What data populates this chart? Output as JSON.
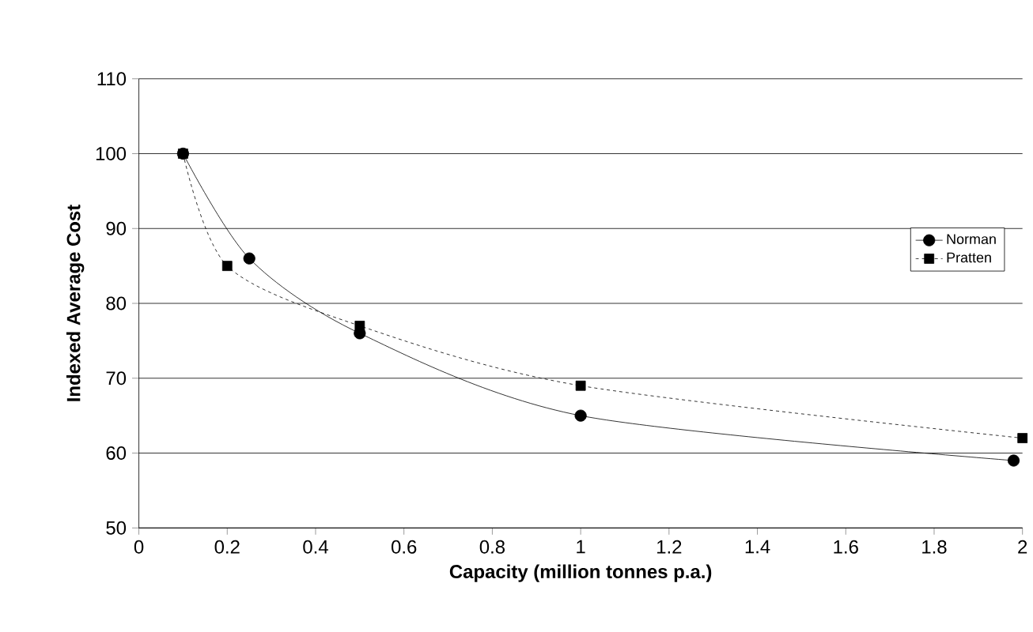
{
  "chart_data": {
    "type": "line",
    "xlabel": "Capacity (million tonnes p.a.)",
    "ylabel": "Indexed Average Cost",
    "xlim": [
      0,
      2
    ],
    "xticks": [
      0,
      0.2,
      0.4,
      0.6,
      0.8,
      1,
      1.2,
      1.4,
      1.6,
      1.8,
      2
    ],
    "ylim": [
      50,
      110
    ],
    "yticks": [
      50,
      60,
      70,
      80,
      90,
      100,
      110
    ],
    "grid": "y",
    "legend": "right",
    "series": [
      {
        "name": "Norman",
        "color": "#000000",
        "marker": "circle",
        "line_style": "solid",
        "x": [
          0.1,
          0.25,
          0.5,
          1,
          1.98
        ],
        "values": [
          100,
          86,
          76,
          65,
          59
        ]
      },
      {
        "name": "Pratten",
        "color": "#000000",
        "marker": "square",
        "line_style": "dashed",
        "x": [
          0.1,
          0.2,
          0.5,
          1,
          2
        ],
        "values": [
          100,
          85,
          77,
          69,
          62
        ]
      }
    ]
  }
}
